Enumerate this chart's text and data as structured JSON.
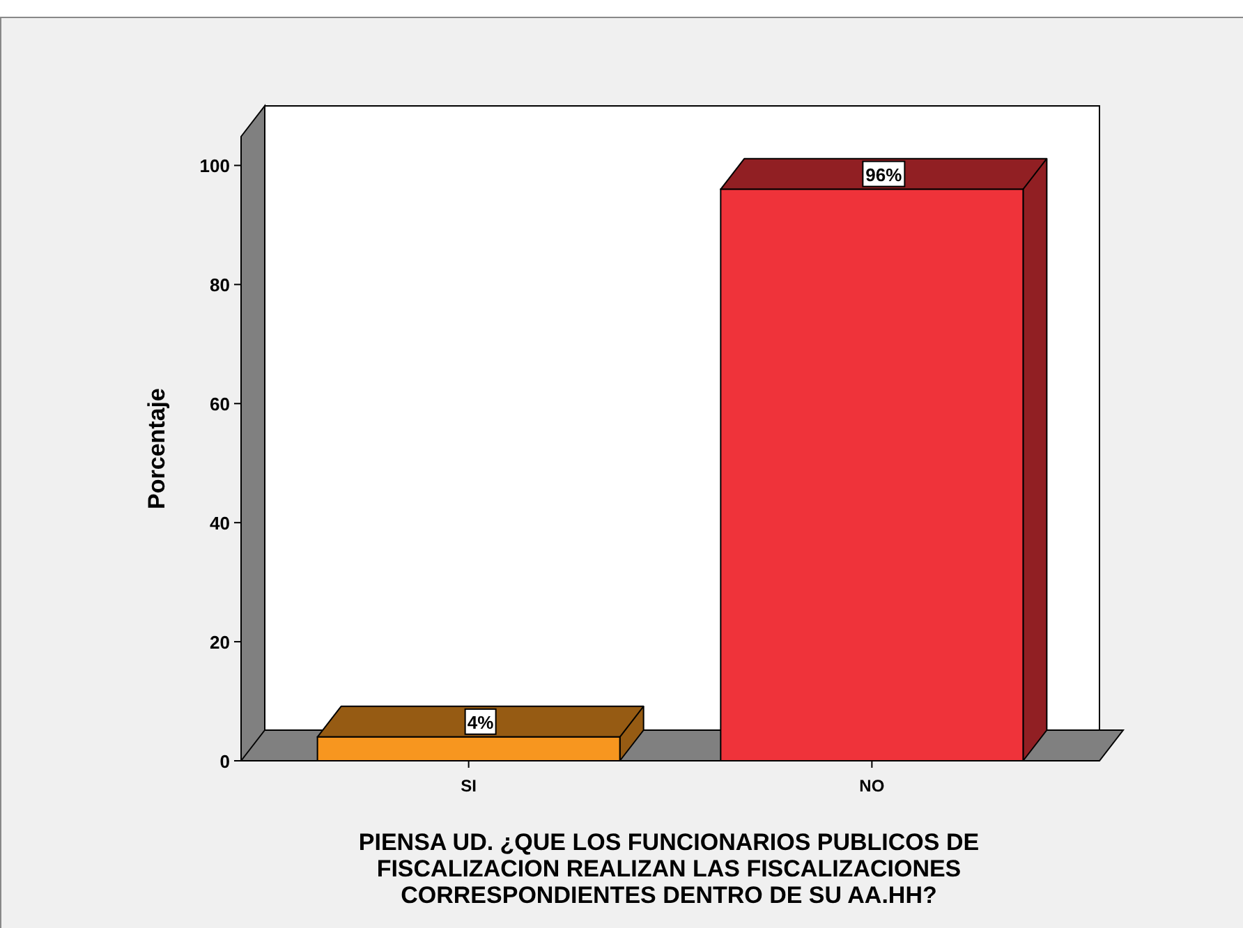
{
  "chart_data": {
    "type": "bar",
    "xlabel": "PIENSA UD. ¿QUE LOS FUNCIONARIOS PUBLICOS DE FISCALIZACION REALIZAN LAS FISCALIZACIONES CORRESPONDIENTES DENTRO DE SU AA.HH?",
    "ylabel": "Porcentaje",
    "categories": [
      "SI",
      "NO"
    ],
    "values": [
      4,
      96
    ],
    "value_labels": [
      "4%",
      "96%"
    ],
    "colors": [
      "#f7961f",
      "#ef333a"
    ],
    "ylim": [
      0,
      110
    ],
    "yticks": [
      0,
      20,
      40,
      60,
      80,
      100
    ],
    "grid": false
  }
}
